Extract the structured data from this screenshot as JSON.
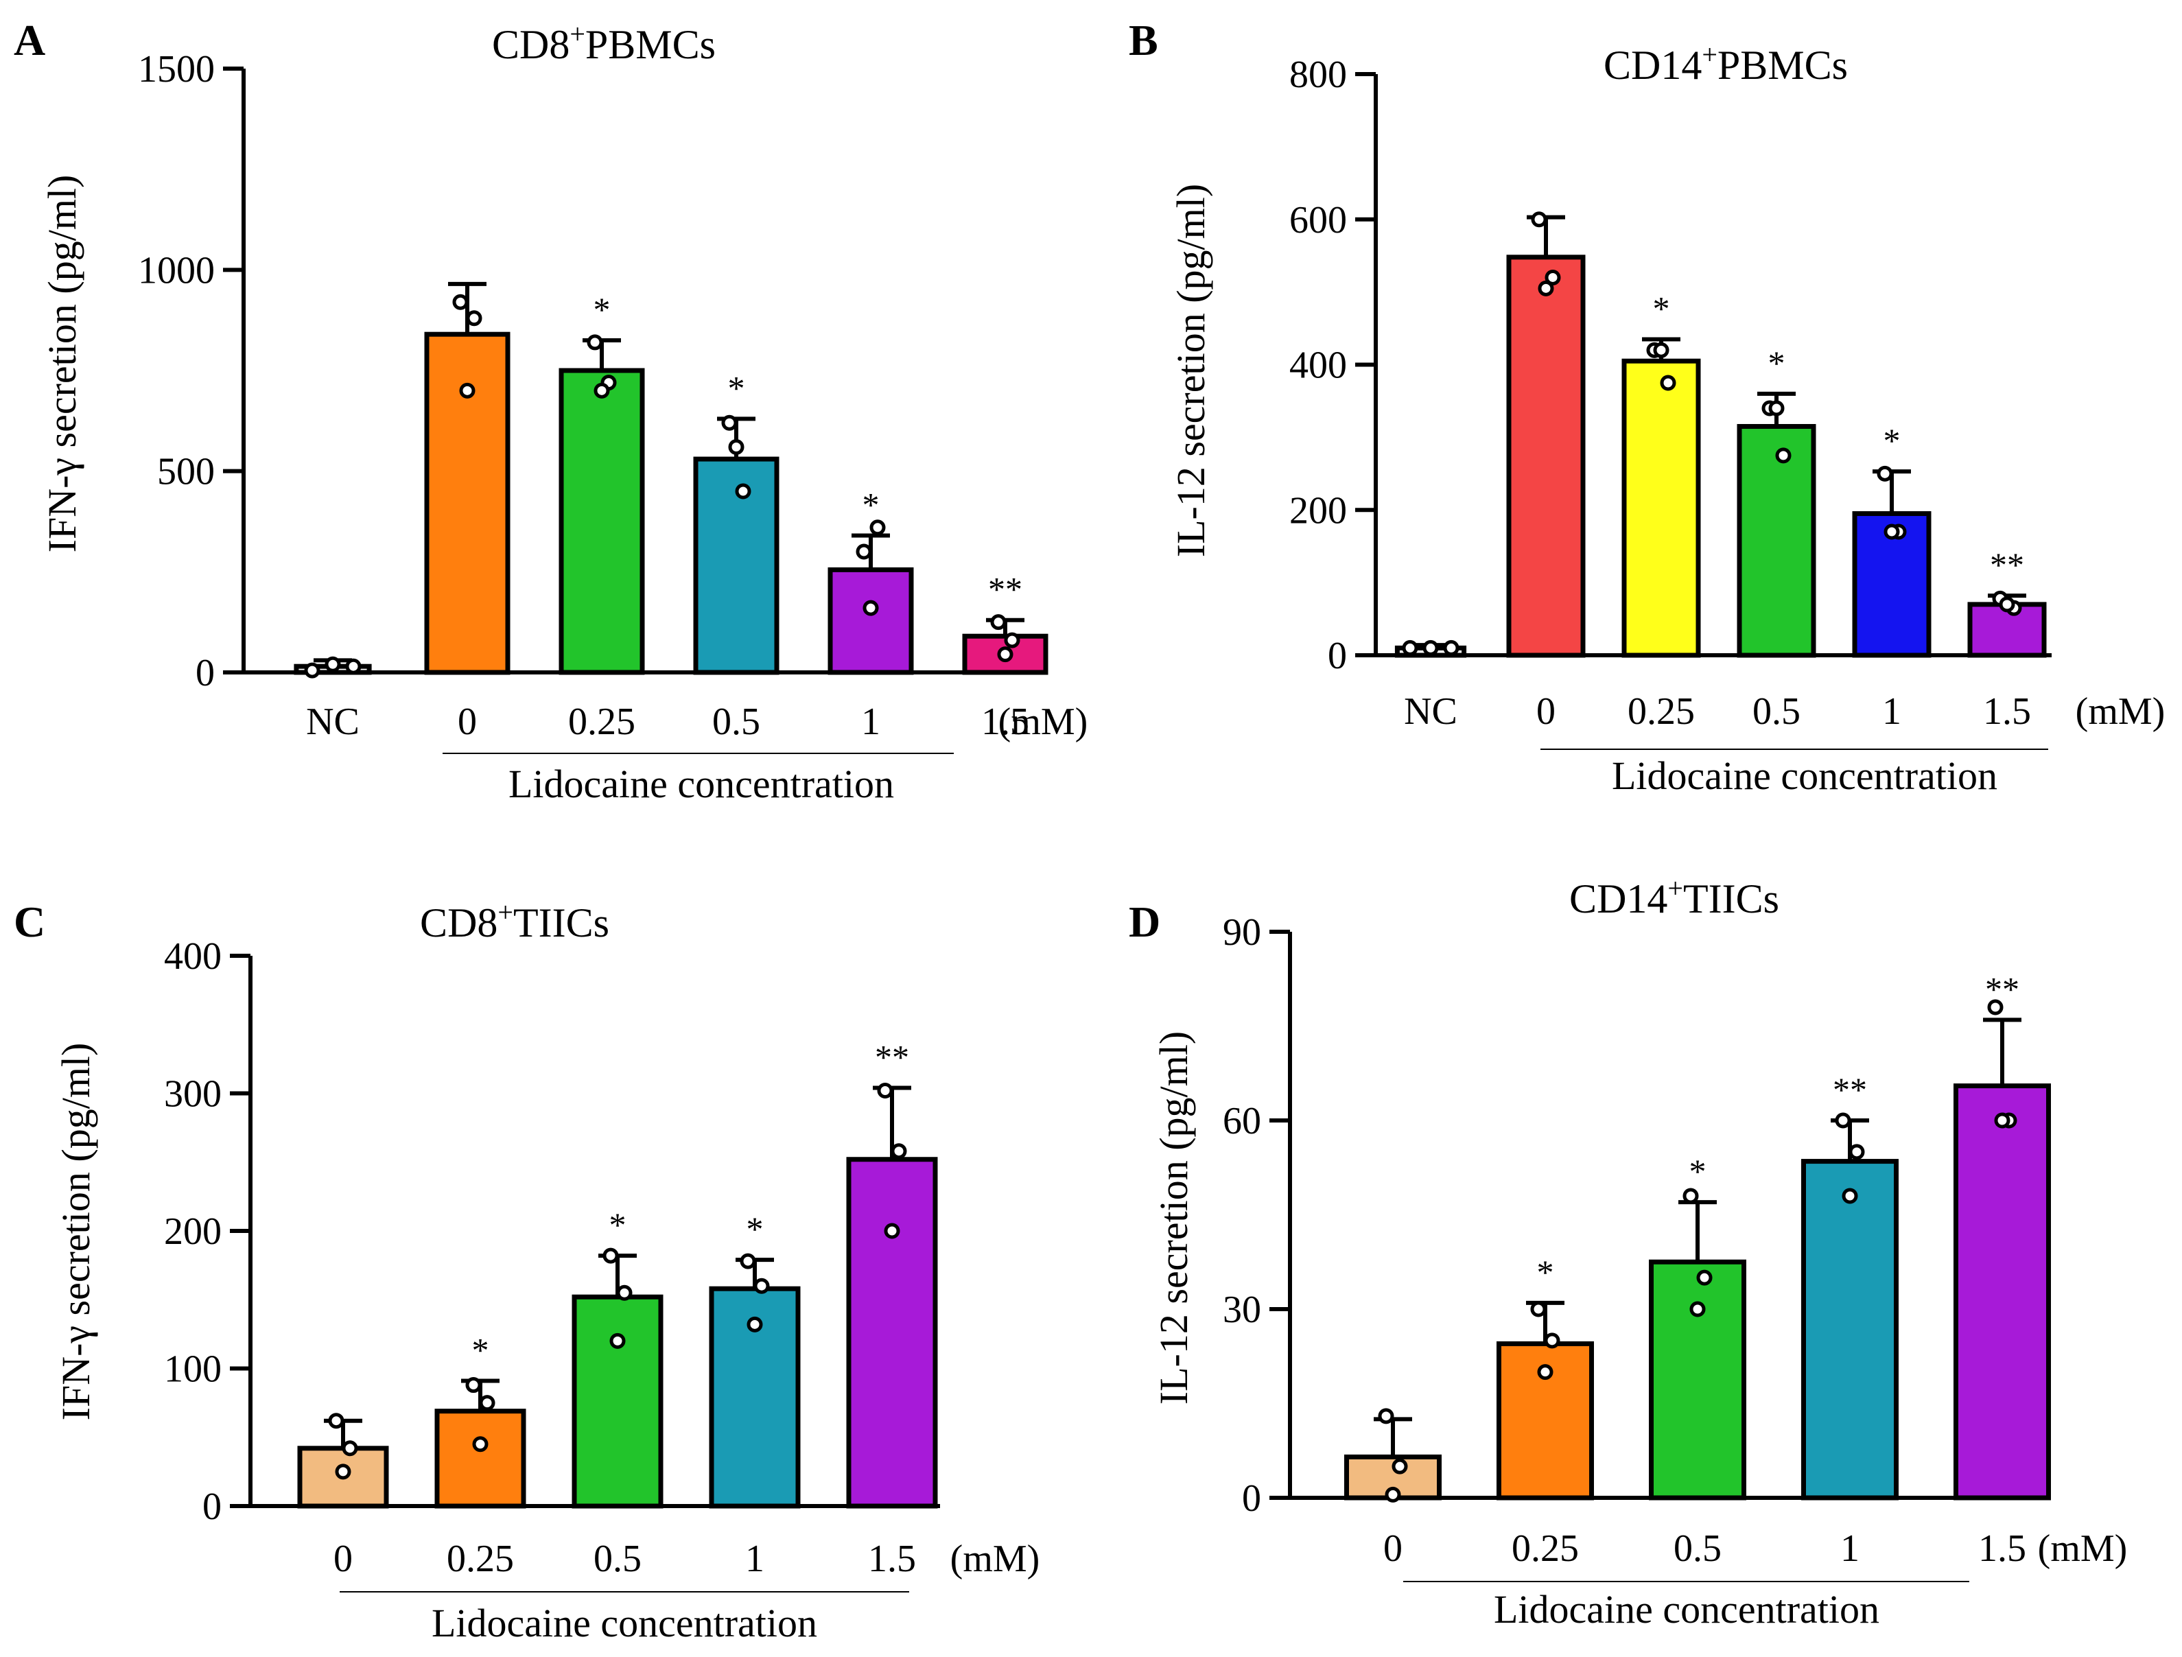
{
  "chart_data": [
    {
      "type": "bar",
      "panel": "A",
      "title": "CD8+PBMCs",
      "title_parts": [
        "CD8",
        "+",
        "PBMCs"
      ],
      "ylabel": "IFN-γ secretion (pg/ml)",
      "xlabel": "Lidocaine concentration",
      "unit": "(mM)",
      "ylim": [
        0,
        1500
      ],
      "yticks": [
        "0",
        "500",
        "1000",
        "1500"
      ],
      "ytick_values": [
        0,
        500,
        1000,
        1500
      ],
      "categories": [
        "NC",
        "0",
        "0.25",
        "0.5",
        "1",
        "1.5"
      ],
      "values": [
        15,
        840,
        750,
        530,
        255,
        90
      ],
      "errors": [
        15,
        125,
        75,
        100,
        85,
        40
      ],
      "points": [
        [
          5,
          20,
          15
        ],
        [
          920,
          880,
          700
        ],
        [
          820,
          720,
          700
        ],
        [
          620,
          450,
          560
        ],
        [
          300,
          360,
          160
        ],
        [
          125,
          80,
          45
        ]
      ],
      "significance": [
        "",
        "",
        "*",
        "*",
        "*",
        "**"
      ],
      "colors": [
        "#000000",
        "#FF7F0E",
        "#22C42B",
        "#1A9BB4",
        "#A71AD8",
        "#E6197D"
      ]
    },
    {
      "type": "bar",
      "panel": "B",
      "title": "CD14+PBMCs",
      "title_parts": [
        "CD14",
        "+",
        "PBMCs"
      ],
      "ylabel": "IL-12 secretion (pg/ml)",
      "xlabel": "Lidocaine concentration",
      "unit": "(mM)",
      "ylim": [
        0,
        800
      ],
      "yticks": [
        "0",
        "200",
        "400",
        "600",
        "800"
      ],
      "ytick_values": [
        0,
        200,
        400,
        600,
        800
      ],
      "categories": [
        "NC",
        "0",
        "0.25",
        "0.5",
        "1",
        "1.5"
      ],
      "values": [
        10,
        548,
        405,
        315,
        195,
        70
      ],
      "errors": [
        4,
        55,
        30,
        45,
        58,
        12
      ],
      "points": [
        [
          10,
          10,
          10
        ],
        [
          600,
          520,
          505
        ],
        [
          420,
          375,
          420
        ],
        [
          340,
          275,
          340
        ],
        [
          250,
          170,
          170
        ],
        [
          78,
          65,
          70
        ]
      ],
      "significance": [
        "",
        "",
        "*",
        "*",
        "*",
        "**"
      ],
      "colors": [
        "#000000",
        "#F44545",
        "#FFFF1A",
        "#22C42B",
        "#1414F0",
        "#A71AD8"
      ]
    },
    {
      "type": "bar",
      "panel": "C",
      "title": "CD8+TIICs",
      "title_parts": [
        "CD8",
        "+",
        "TIICs"
      ],
      "ylabel": "IFN-γ secretion (pg/ml)",
      "xlabel": "Lidocaine concentration",
      "unit": "(mM)",
      "ylim": [
        0,
        400
      ],
      "yticks": [
        "0",
        "100",
        "200",
        "300",
        "400"
      ],
      "ytick_values": [
        0,
        100,
        200,
        300,
        400
      ],
      "categories": [
        "0",
        "0.25",
        "0.5",
        "1",
        "1.5"
      ],
      "values": [
        42,
        69,
        152,
        158,
        252
      ],
      "errors": [
        20,
        22,
        30,
        21,
        52
      ],
      "points": [
        [
          62,
          42,
          25
        ],
        [
          88,
          75,
          45
        ],
        [
          182,
          155,
          120
        ],
        [
          178,
          160,
          132
        ],
        [
          302,
          258,
          200
        ]
      ],
      "significance": [
        "",
        "*",
        "*",
        "*",
        "**"
      ],
      "colors": [
        "#F2BB80",
        "#FF7F0E",
        "#22C42B",
        "#1A9BB4",
        "#A71AD8"
      ]
    },
    {
      "type": "bar",
      "panel": "D",
      "title": "CD14+TIICs",
      "title_parts": [
        "CD14",
        "+",
        "TIICs"
      ],
      "ylabel": "IL-12 secretion (pg/ml)",
      "xlabel": "Lidocaine concentration",
      "unit": "(mM)",
      "ylim": [
        0,
        90
      ],
      "yticks": [
        "0",
        "30",
        "60",
        "90"
      ],
      "ytick_values": [
        0,
        30,
        60,
        90
      ],
      "categories": [
        "0",
        "0.25",
        "0.5",
        "1",
        "1.5"
      ],
      "values": [
        6.5,
        24.5,
        37.5,
        53.5,
        65.5
      ],
      "errors": [
        6,
        6.5,
        9.5,
        6.5,
        10.5
      ],
      "points": [
        [
          13,
          5,
          0.5
        ],
        [
          30,
          25,
          20
        ],
        [
          48,
          35,
          30
        ],
        [
          60,
          55,
          48
        ],
        [
          78,
          60,
          60
        ]
      ],
      "significance": [
        "",
        "*",
        "*",
        "**",
        "**"
      ],
      "colors": [
        "#F2BB80",
        "#FF7F0E",
        "#22C42B",
        "#1A9BB4",
        "#A71AD8"
      ]
    }
  ]
}
